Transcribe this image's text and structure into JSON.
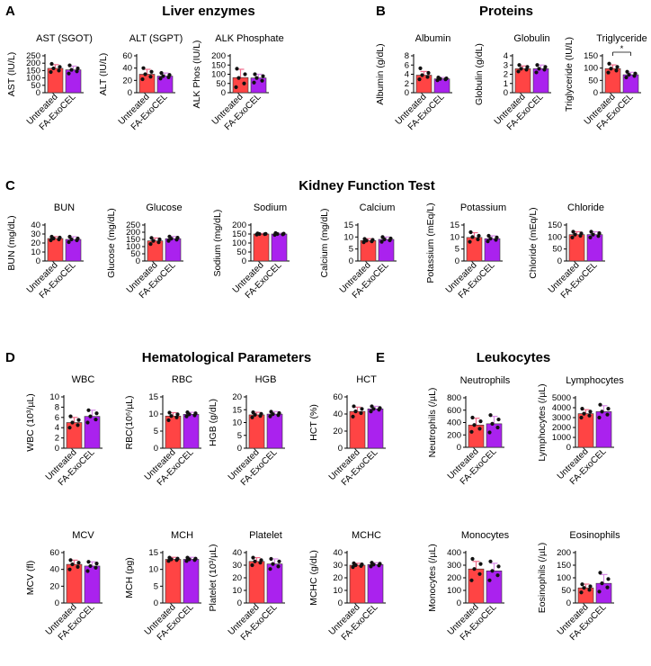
{
  "panels": [
    {
      "id": "A",
      "title": "Liver enzymes"
    },
    {
      "id": "B",
      "title": "Proteins"
    },
    {
      "id": "C",
      "title": "Kidney Function Test"
    },
    {
      "id": "D",
      "title": "Hematological Parameters"
    },
    {
      "id": "E",
      "title": "Leukocytes"
    }
  ],
  "colors": {
    "untreated": "#ff4444",
    "fa_exocel": "#aa22ee",
    "error_untreated": "#f06a8a",
    "error_fa": "#d88ae8"
  },
  "chart_data": [
    {
      "type": "bar",
      "title": "AST (SGOT)",
      "ylabel": "AST (IU/L)",
      "categories": [
        "Untreated",
        "FA-ExoCEL"
      ],
      "values": [
        165,
        155
      ],
      "errors": [
        25,
        25
      ],
      "ylim": [
        0,
        250
      ],
      "yticks": [
        0,
        50,
        100,
        150,
        200,
        250
      ],
      "points": [
        [
          140,
          150,
          165,
          175,
          195
        ],
        [
          130,
          145,
          155,
          165,
          185
        ]
      ]
    },
    {
      "type": "bar",
      "title": "ALT (SGPT)",
      "ylabel": "ALT (IU/L)",
      "categories": [
        "Untreated",
        "FA-ExoCEL"
      ],
      "values": [
        30,
        27
      ],
      "errors": [
        8,
        5
      ],
      "ylim": [
        0,
        60
      ],
      "yticks": [
        0,
        20,
        40,
        60
      ],
      "points": [
        [
          22,
          26,
          30,
          34,
          40
        ],
        [
          23,
          25,
          27,
          29,
          32
        ]
      ]
    },
    {
      "type": "bar",
      "title": "ALK Phosphate",
      "ylabel": "ALK Phos (IU/L)",
      "categories": [
        "Untreated",
        "FA-ExoCEL"
      ],
      "values": [
        82,
        80
      ],
      "errors": [
        45,
        20
      ],
      "ylim": [
        0,
        200
      ],
      "yticks": [
        0,
        50,
        100,
        150,
        200
      ],
      "points": [
        [
          30,
          50,
          80,
          100,
          130
        ],
        [
          55,
          65,
          80,
          90,
          100
        ]
      ]
    },
    {
      "type": "bar",
      "title": "Albumin",
      "ylabel": "Albumin (g/dL)",
      "categories": [
        "Untreated",
        "FA-ExoCEL"
      ],
      "values": [
        3.8,
        3.0
      ],
      "errors": [
        0.8,
        0.3
      ],
      "ylim": [
        0,
        8
      ],
      "yticks": [
        0,
        2,
        4,
        6,
        8
      ],
      "points": [
        [
          2.9,
          3.4,
          3.8,
          4.3,
          5.3
        ],
        [
          2.7,
          2.9,
          3.0,
          3.1,
          3.3
        ]
      ]
    },
    {
      "type": "bar",
      "title": "Globulin",
      "ylabel": "Globulin (g/dL)",
      "categories": [
        "Untreated",
        "FA-ExoCEL"
      ],
      "values": [
        2.6,
        2.6
      ],
      "errors": [
        0.3,
        0.4
      ],
      "ylim": [
        0,
        4
      ],
      "yticks": [
        0,
        1,
        2,
        3,
        4
      ],
      "points": [
        [
          2.3,
          2.5,
          2.6,
          2.8,
          3.0
        ],
        [
          2.2,
          2.5,
          2.6,
          2.8,
          3.0
        ]
      ]
    },
    {
      "type": "bar",
      "title": "Triglyceride",
      "ylabel": "Triglyceride (IU/L)",
      "categories": [
        "Untreated",
        "FA-ExoCEL"
      ],
      "values": [
        98,
        73
      ],
      "errors": [
        15,
        10
      ],
      "ylim": [
        0,
        150
      ],
      "yticks": [
        0,
        50,
        100,
        150
      ],
      "points": [
        [
          82,
          90,
          98,
          105,
          118
        ],
        [
          62,
          68,
          73,
          78,
          85
        ]
      ],
      "annotation": "*"
    },
    {
      "type": "bar",
      "title": "BUN",
      "ylabel": "BUN (mg/dL)",
      "categories": [
        "Untreated",
        "FA-ExoCEL"
      ],
      "values": [
        25,
        24
      ],
      "errors": [
        2,
        3
      ],
      "ylim": [
        0,
        40
      ],
      "yticks": [
        0,
        10,
        20,
        30,
        40
      ],
      "points": [
        [
          23,
          24,
          25,
          26,
          27
        ],
        [
          21,
          23,
          24,
          25,
          27
        ]
      ]
    },
    {
      "type": "bar",
      "title": "Glucose",
      "ylabel": "Glucose (mg/dL)",
      "categories": [
        "Untreated",
        "FA-ExoCEL"
      ],
      "values": [
        140,
        155
      ],
      "errors": [
        20,
        15
      ],
      "ylim": [
        0,
        250
      ],
      "yticks": [
        0,
        50,
        100,
        150,
        200,
        250
      ],
      "points": [
        [
          118,
          130,
          140,
          150,
          160
        ],
        [
          140,
          148,
          155,
          162,
          170
        ]
      ]
    },
    {
      "type": "bar",
      "title": "Sodium",
      "ylabel": "Sodium (mg/dL)",
      "categories": [
        "Untreated",
        "FA-ExoCEL"
      ],
      "values": [
        150,
        150
      ],
      "errors": [
        3,
        5
      ],
      "ylim": [
        0,
        200
      ],
      "yticks": [
        0,
        50,
        100,
        150,
        200
      ],
      "points": [
        [
          147,
          149,
          150,
          151,
          153
        ],
        [
          145,
          148,
          150,
          152,
          155
        ]
      ]
    },
    {
      "type": "bar",
      "title": "Calcium",
      "ylabel": "Calcium (mg/dL)",
      "categories": [
        "Untreated",
        "FA-ExoCEL"
      ],
      "values": [
        8.5,
        9.0
      ],
      "errors": [
        0.8,
        1.0
      ],
      "ylim": [
        0,
        15
      ],
      "yticks": [
        0,
        5,
        10,
        15
      ],
      "points": [
        [
          7.8,
          8.2,
          8.5,
          8.8,
          9.2
        ],
        [
          8.0,
          8.6,
          9.0,
          9.4,
          10.0
        ]
      ]
    },
    {
      "type": "bar",
      "title": "Potassium",
      "ylabel": "Potassium (mEq/L)",
      "categories": [
        "Untreated",
        "FA-ExoCEL"
      ],
      "values": [
        9.8,
        9.3
      ],
      "errors": [
        2.0,
        1.2
      ],
      "ylim": [
        0,
        15
      ],
      "yticks": [
        0,
        5,
        10,
        15
      ],
      "points": [
        [
          8,
          9,
          10,
          10.5,
          12
        ],
        [
          8.2,
          8.8,
          9.3,
          9.8,
          10.5
        ]
      ]
    },
    {
      "type": "bar",
      "title": "Chloride",
      "ylabel": "Chloride (mEq/L)",
      "categories": [
        "Untreated",
        "FA-ExoCEL"
      ],
      "values": [
        110,
        110
      ],
      "errors": [
        12,
        12
      ],
      "ylim": [
        0,
        150
      ],
      "yticks": [
        0,
        50,
        100,
        150
      ],
      "points": [
        [
          98,
          105,
          110,
          115,
          122
        ],
        [
          98,
          104,
          110,
          116,
          122
        ]
      ]
    },
    {
      "type": "bar",
      "title": "WBC",
      "ylabel": "WBC (10³/µL)",
      "categories": [
        "Untreated",
        "FA-ExoCEL"
      ],
      "values": [
        5.0,
        6.2
      ],
      "errors": [
        1.0,
        1.2
      ],
      "ylim": [
        0,
        10
      ],
      "yticks": [
        0,
        2,
        4,
        6,
        8,
        10
      ],
      "points": [
        [
          4.0,
          4.5,
          5.0,
          5.5,
          6.2
        ],
        [
          5.0,
          5.6,
          6.2,
          6.8,
          7.4
        ]
      ]
    },
    {
      "type": "bar",
      "title": "RBC",
      "ylabel": "RBC(10⁶/µL)",
      "categories": [
        "Untreated",
        "FA-ExoCEL"
      ],
      "values": [
        9.4,
        9.9
      ],
      "errors": [
        1.0,
        0.6
      ],
      "ylim": [
        0,
        15
      ],
      "yticks": [
        0,
        5,
        10,
        15
      ],
      "points": [
        [
          8.2,
          9.0,
          9.4,
          9.9,
          10.4
        ],
        [
          9.3,
          9.6,
          9.9,
          10.2,
          10.5
        ]
      ]
    },
    {
      "type": "bar",
      "title": "HGB",
      "ylabel": "HGB (g/dL)",
      "categories": [
        "Untreated",
        "FA-ExoCEL"
      ],
      "values": [
        13,
        13.3
      ],
      "errors": [
        1.0,
        1.0
      ],
      "ylim": [
        0,
        20
      ],
      "yticks": [
        0,
        5,
        10,
        15,
        20
      ],
      "points": [
        [
          12,
          12.6,
          13,
          13.4,
          14
        ],
        [
          12.4,
          12.9,
          13.3,
          13.7,
          14.2
        ]
      ]
    },
    {
      "type": "bar",
      "title": "HCT",
      "ylabel": "HCT (%)",
      "categories": [
        "Untreated",
        "FA-ExoCEL"
      ],
      "values": [
        43,
        46
      ],
      "errors": [
        5,
        3
      ],
      "ylim": [
        0,
        60
      ],
      "yticks": [
        0,
        20,
        40,
        60
      ],
      "points": [
        [
          37,
          41,
          43,
          46,
          49
        ],
        [
          43,
          45,
          46,
          47,
          49
        ]
      ]
    },
    {
      "type": "bar",
      "title": "MCV",
      "ylabel": "MCV (fl)",
      "categories": [
        "Untreated",
        "FA-ExoCEL"
      ],
      "values": [
        46,
        44
      ],
      "errors": [
        5,
        5
      ],
      "ylim": [
        0,
        60
      ],
      "yticks": [
        0,
        20,
        40,
        60
      ],
      "points": [
        [
          40,
          43,
          46,
          48,
          51
        ],
        [
          38,
          42,
          44,
          47,
          49
        ]
      ]
    },
    {
      "type": "bar",
      "title": "MCH",
      "ylabel": "MCH (pg)",
      "categories": [
        "Untreated",
        "FA-ExoCEL"
      ],
      "values": [
        13,
        13
      ],
      "errors": [
        0.6,
        0.6
      ],
      "ylim": [
        0,
        15
      ],
      "yticks": [
        0,
        5,
        10,
        15
      ],
      "points": [
        [
          12.5,
          12.8,
          13,
          13.2,
          13.5
        ],
        [
          12.5,
          12.8,
          13,
          13.2,
          13.5
        ]
      ]
    },
    {
      "type": "bar",
      "title": "Platelet",
      "ylabel": "Platelet (10³/µL)",
      "categories": [
        "Untreated",
        "FA-ExoCEL"
      ],
      "values": [
        33,
        31
      ],
      "errors": [
        3,
        4
      ],
      "ylim": [
        0,
        40
      ],
      "yticks": [
        0,
        10,
        20,
        30,
        40
      ],
      "points": [
        [
          30,
          32,
          33,
          34,
          36
        ],
        [
          27,
          29,
          31,
          33,
          35
        ]
      ]
    },
    {
      "type": "bar",
      "title": "MCHC",
      "ylabel": "MCHC (g/dL)",
      "categories": [
        "Untreated",
        "FA-ExoCEL"
      ],
      "values": [
        30,
        30.5
      ],
      "errors": [
        1.5,
        1.5
      ],
      "ylim": [
        0,
        40
      ],
      "yticks": [
        0,
        10,
        20,
        30,
        40
      ],
      "points": [
        [
          28.5,
          29.4,
          30,
          30.6,
          31.5
        ],
        [
          29,
          29.8,
          30.5,
          31.2,
          32
        ]
      ]
    },
    {
      "type": "bar",
      "title": "Neutrophils",
      "ylabel": "Neutrophils (/µL)",
      "categories": [
        "Untreated",
        "FA-ExoCEL"
      ],
      "values": [
        360,
        380
      ],
      "errors": [
        110,
        120
      ],
      "ylim": [
        0,
        800
      ],
      "yticks": [
        0,
        200,
        400,
        600,
        800
      ],
      "points": [
        [
          250,
          300,
          360,
          420,
          480
        ],
        [
          240,
          320,
          380,
          450,
          520
        ]
      ]
    },
    {
      "type": "bar",
      "title": "Lymphocytes",
      "ylabel": "Lymphocytes (/µL)",
      "categories": [
        "Untreated",
        "FA-ExoCEL"
      ],
      "values": [
        3400,
        3600
      ],
      "errors": [
        400,
        600
      ],
      "ylim": [
        0,
        5000
      ],
      "yticks": [
        0,
        1000,
        2000,
        3000,
        4000,
        5000
      ],
      "points": [
        [
          3000,
          3200,
          3400,
          3600,
          3900
        ],
        [
          3000,
          3300,
          3600,
          3900,
          4300
        ]
      ]
    },
    {
      "type": "bar",
      "title": "Monocytes",
      "ylabel": "Monocytes (/µL)",
      "categories": [
        "Untreated",
        "FA-ExoCEL"
      ],
      "values": [
        270,
        255
      ],
      "errors": [
        60,
        60
      ],
      "ylim": [
        0,
        400
      ],
      "yticks": [
        0,
        100,
        200,
        300,
        400
      ],
      "points": [
        [
          180,
          230,
          270,
          310,
          350
        ],
        [
          180,
          220,
          255,
          290,
          330
        ]
      ]
    },
    {
      "type": "bar",
      "title": "Eosinophils",
      "ylabel": "Eosinophils (/µL)",
      "categories": [
        "Untreated",
        "FA-ExoCEL"
      ],
      "values": [
        60,
        78
      ],
      "errors": [
        15,
        35
      ],
      "ylim": [
        0,
        200
      ],
      "yticks": [
        0,
        50,
        100,
        150,
        200
      ],
      "points": [
        [
          42,
          52,
          60,
          66,
          74
        ],
        [
          45,
          62,
          78,
          95,
          120
        ]
      ]
    }
  ]
}
